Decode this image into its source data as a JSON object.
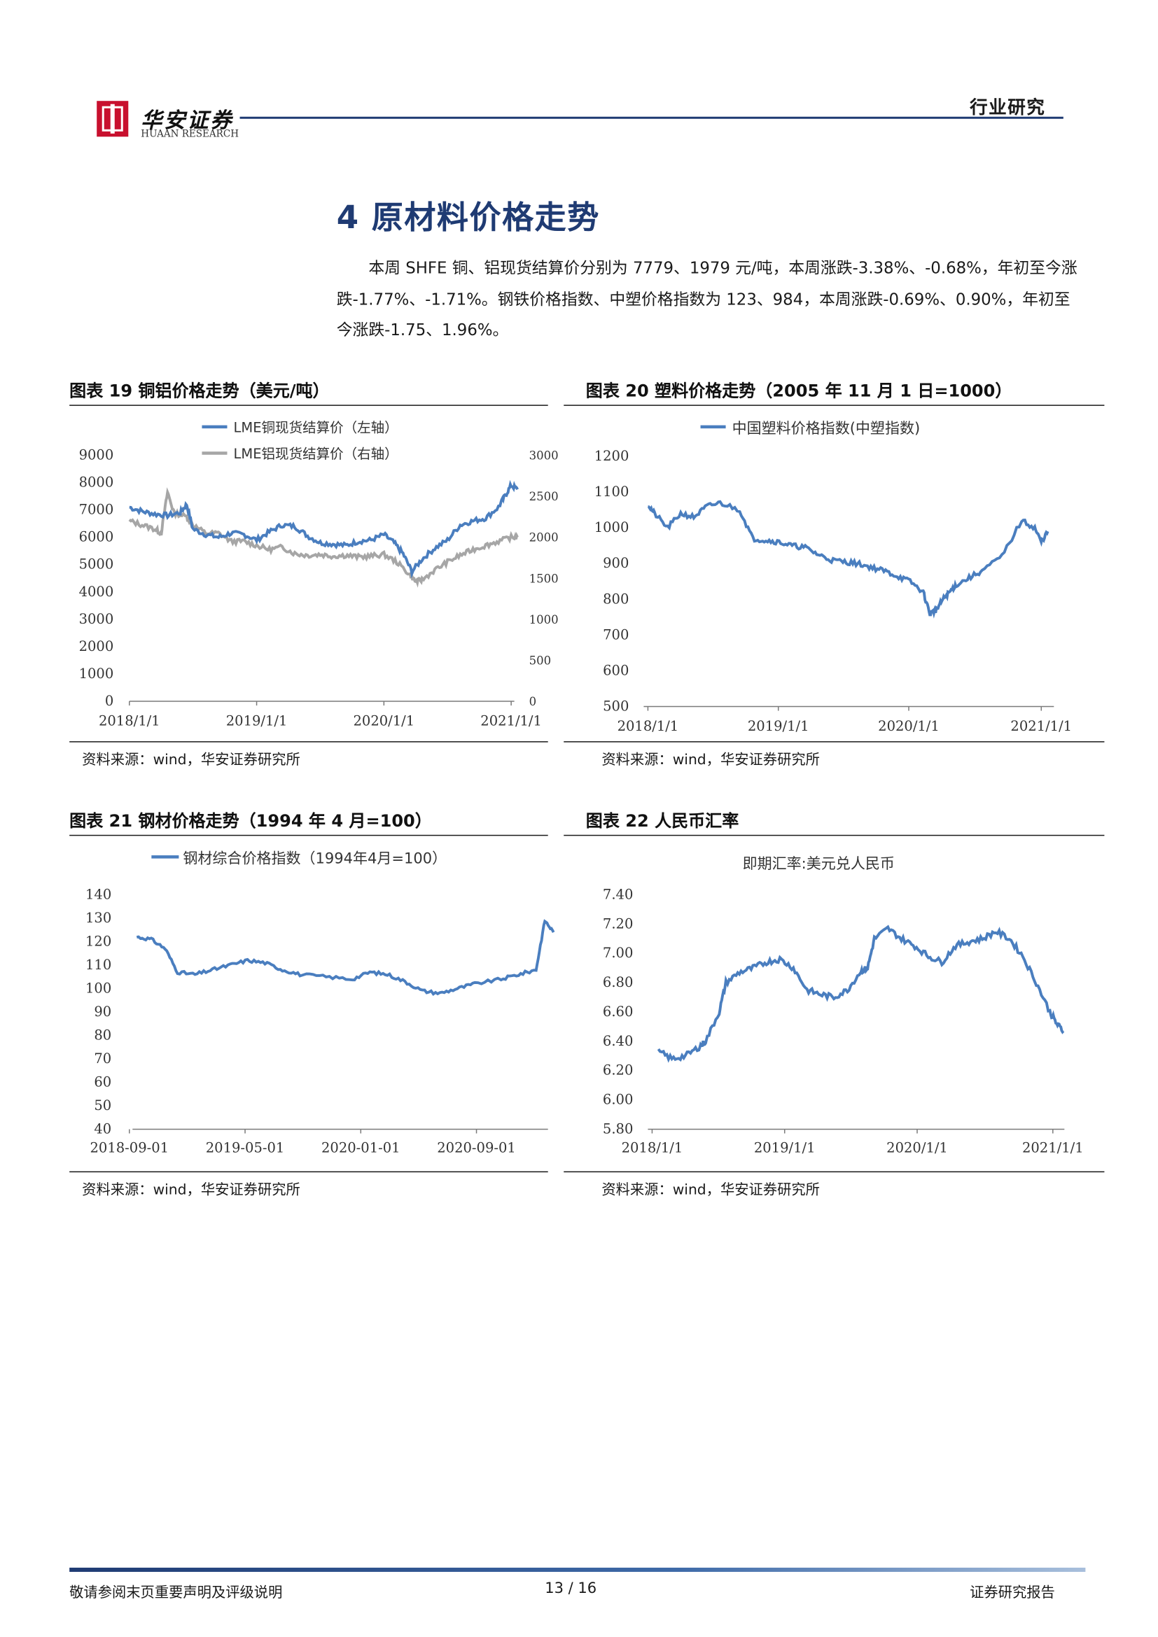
{
  "header": {
    "brand_cn": "华安证券",
    "brand_en": "HUAAN RESEARCH",
    "report_type": "行业研究"
  },
  "section": {
    "title": "4 原材料价格走势",
    "paragraph": "本周 SHFE 铜、铝现货结算价分别为 7779、1979 元/吨，本周涨跌-3.38%、-0.68%，年初至今涨跌-1.77%、-1.71%。钢铁价格指数、中塑价格指数为 123、984，本周涨跌-0.69%、0.90%，年初至今涨跌-1.75、1.96%。"
  },
  "figures": [
    {
      "caption": "图表 19 铜铝价格走势（美元/吨）",
      "source": "资料来源：wind，华安证券研究所"
    },
    {
      "caption": "图表 20 塑料价格走势（2005 年 11 月 1 日=1000）",
      "source": "资料来源：wind，华安证券研究所"
    },
    {
      "caption": "图表 21 钢材价格走势（1994 年 4 月=100）",
      "source": "资料来源：wind，华安证券研究所"
    },
    {
      "caption": "图表 22 人民币汇率",
      "source": "资料来源：wind，华安证券研究所"
    }
  ],
  "colors": {
    "blue_series": "#4a7ebf",
    "gray_series": "#a6a6a6",
    "title_blue": "#1f3b73"
  },
  "chart_data": [
    {
      "type": "line",
      "x_ticks": [
        "2018/1/1",
        "2019/1/1",
        "2020/1/1",
        "2021/1/1"
      ],
      "y_ticks_left": [
        "9000",
        "8000",
        "7000",
        "6000",
        "5000",
        "4000",
        "3000",
        "2000",
        "1000",
        "0"
      ],
      "y_ticks_right": [
        "3000",
        "2500",
        "2000",
        "1500",
        "1000",
        "500",
        "0"
      ],
      "ylim_left": [
        0,
        9000
      ],
      "ylim_right": [
        0,
        3000
      ],
      "x_range": [
        2018.0,
        2021.0
      ],
      "legend_position": "top",
      "series": [
        {
          "name": "LME铜现货结算价（左轴）",
          "axis": "left",
          "color": "#4a7ebf",
          "x": [
            2018.0,
            2018.1,
            2018.2,
            2018.3,
            2018.4,
            2018.45,
            2018.5,
            2018.6,
            2018.7,
            2018.8,
            2018.9,
            2019.0,
            2019.1,
            2019.2,
            2019.3,
            2019.4,
            2019.5,
            2019.6,
            2019.7,
            2019.8,
            2019.9,
            2020.0,
            2020.08,
            2020.15,
            2020.22,
            2020.3,
            2020.4,
            2020.5,
            2020.6,
            2020.7,
            2020.8,
            2020.9,
            2020.95,
            2021.0,
            2021.05
          ],
          "y": [
            7100,
            6950,
            6850,
            6800,
            6900,
            7200,
            6300,
            6100,
            6000,
            6150,
            6100,
            5900,
            6200,
            6450,
            6400,
            6050,
            5800,
            5750,
            5700,
            5850,
            5900,
            6100,
            5800,
            5400,
            4750,
            5200,
            5600,
            5900,
            6450,
            6600,
            6700,
            7100,
            7500,
            7900,
            7750
          ]
        },
        {
          "name": "LME铝现货结算价（右轴）",
          "axis": "right",
          "color": "#a6a6a6",
          "x": [
            2018.0,
            2018.1,
            2018.2,
            2018.25,
            2018.3,
            2018.35,
            2018.45,
            2018.5,
            2018.6,
            2018.7,
            2018.8,
            2018.9,
            2019.0,
            2019.1,
            2019.2,
            2019.3,
            2019.4,
            2019.5,
            2019.6,
            2019.7,
            2019.8,
            2019.9,
            2020.0,
            2020.1,
            2020.2,
            2020.25,
            2020.3,
            2020.4,
            2020.5,
            2020.6,
            2020.7,
            2020.8,
            2020.9,
            2021.0,
            2021.05
          ],
          "y": [
            2200,
            2150,
            2100,
            2050,
            2550,
            2300,
            2250,
            2150,
            2050,
            2050,
            1950,
            1950,
            1900,
            1850,
            1880,
            1800,
            1780,
            1790,
            1770,
            1780,
            1760,
            1770,
            1790,
            1700,
            1550,
            1460,
            1480,
            1600,
            1700,
            1780,
            1850,
            1900,
            1950,
            2000,
            2000
          ]
        }
      ]
    },
    {
      "type": "line",
      "x_ticks": [
        "2018/1/1",
        "2019/1/1",
        "2020/1/1",
        "2021/1/1"
      ],
      "y_ticks": [
        "1200",
        "1100",
        "1000",
        "900",
        "800",
        "700",
        "600",
        "500"
      ],
      "ylim": [
        500,
        1200
      ],
      "x_range": [
        2018.0,
        2021.0
      ],
      "legend_position": "top",
      "series": [
        {
          "name": "中国塑料价格指数(中塑指数)",
          "color": "#4a7ebf",
          "x": [
            2018.0,
            2018.05,
            2018.15,
            2018.25,
            2018.35,
            2018.45,
            2018.55,
            2018.7,
            2018.8,
            2018.9,
            2019.0,
            2019.1,
            2019.2,
            2019.3,
            2019.4,
            2019.5,
            2019.6,
            2019.7,
            2019.8,
            2019.9,
            2020.0,
            2020.1,
            2020.15,
            2020.2,
            2020.25,
            2020.3,
            2020.35,
            2020.45,
            2020.55,
            2020.7,
            2020.85,
            2020.95,
            2021.0,
            2021.05
          ],
          "y": [
            1065,
            1040,
            1000,
            1040,
            1030,
            1060,
            1070,
            1050,
            970,
            965,
            960,
            950,
            945,
            925,
            910,
            905,
            900,
            890,
            880,
            865,
            850,
            820,
            760,
            770,
            800,
            820,
            840,
            860,
            880,
            920,
            1020,
            1000,
            960,
            990
          ]
        }
      ]
    },
    {
      "type": "line",
      "x_ticks": [
        "2018-09-01",
        "2019-05-01",
        "2020-01-01",
        "2020-09-01"
      ],
      "y_ticks": [
        "140",
        "130",
        "120",
        "110",
        "100",
        "90",
        "80",
        "70",
        "60",
        "50",
        "40"
      ],
      "ylim": [
        40,
        140
      ],
      "x_range": [
        2018.667,
        2021.0
      ],
      "legend_position": "top",
      "series": [
        {
          "name": "钢材综合价格指数（1994年4月=100）",
          "color": "#4a7ebf",
          "x": [
            2018.667,
            2018.75,
            2018.83,
            2018.9,
            2019.0,
            2019.1,
            2019.2,
            2019.3,
            2019.4,
            2019.5,
            2019.6,
            2019.75,
            2019.9,
            2020.0,
            2020.1,
            2020.2,
            2020.3,
            2020.4,
            2020.5,
            2020.6,
            2020.75,
            2020.85,
            2020.95,
            2021.0,
            2021.05
          ],
          "y": [
            122,
            121,
            117,
            107,
            106,
            108,
            110,
            112,
            111,
            108,
            106,
            105,
            104,
            107,
            106,
            103,
            99,
            98,
            100,
            102,
            104,
            106,
            108,
            129,
            124
          ]
        }
      ]
    },
    {
      "type": "line",
      "x_ticks": [
        "2018/1/1",
        "2019/1/1",
        "2020/1/1",
        "2021/1/1"
      ],
      "y_ticks": [
        "7.40",
        "7.20",
        "7.00",
        "6.80",
        "6.60",
        "6.40",
        "6.20",
        "6.00",
        "5.80"
      ],
      "ylim": [
        5.8,
        7.4
      ],
      "x_range": [
        2018.0,
        2021.0
      ],
      "legend_position": "top",
      "series": [
        {
          "name": "即期汇率:美元兑人民币",
          "color": "#4a7ebf",
          "x": [
            2018.0,
            2018.1,
            2018.2,
            2018.3,
            2018.35,
            2018.45,
            2018.5,
            2018.6,
            2018.7,
            2018.8,
            2018.9,
            2019.0,
            2019.1,
            2019.2,
            2019.3,
            2019.4,
            2019.5,
            2019.55,
            2019.6,
            2019.7,
            2019.8,
            2019.9,
            2020.0,
            2020.1,
            2020.2,
            2020.3,
            2020.4,
            2020.5,
            2020.6,
            2020.7,
            2020.8,
            2020.9,
            2020.95,
            2021.0
          ],
          "y": [
            6.33,
            6.28,
            6.3,
            6.36,
            6.4,
            6.6,
            6.8,
            6.87,
            6.9,
            6.94,
            6.96,
            6.9,
            6.75,
            6.72,
            6.7,
            6.75,
            6.88,
            6.9,
            7.1,
            7.17,
            7.1,
            7.05,
            6.98,
            6.94,
            7.05,
            7.08,
            7.1,
            7.15,
            7.1,
            6.98,
            6.8,
            6.6,
            6.52,
            6.47
          ]
        }
      ]
    }
  ],
  "footer": {
    "disclaimer": "敬请参阅末页重要声明及评级说明",
    "page": "13 / 16",
    "report_label": "证券研究报告"
  }
}
